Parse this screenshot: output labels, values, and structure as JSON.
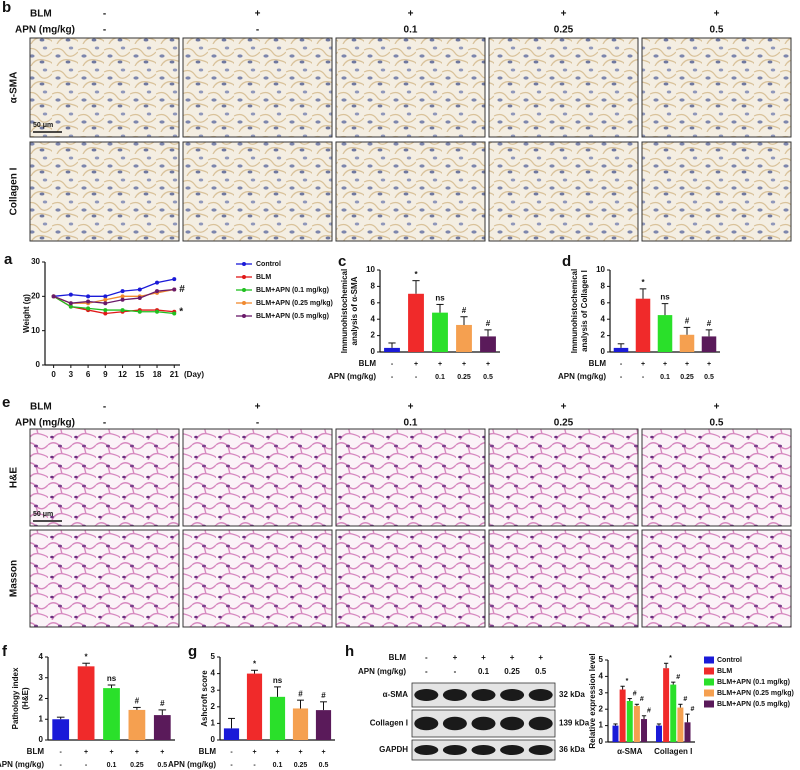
{
  "panels": [
    {
      "panel": "b",
      "header_rows": [
        {
          "label": "BLM",
          "labels": [
            "-",
            "+",
            "+",
            "+",
            "+"
          ]
        },
        {
          "label": "APN (mg/kg)",
          "labels": [
            "-",
            "-",
            "0.1",
            "0.25",
            "0.5"
          ]
        }
      ],
      "rows": [
        "α-SMA",
        "Collagen I"
      ],
      "scale_bar": "50 μm"
    },
    {
      "panel": "e",
      "header_rows": [
        {
          "label": "BLM",
          "labels": [
            "-",
            "+",
            "+",
            "+",
            "+"
          ]
        },
        {
          "label": "APN (mg/kg)",
          "labels": [
            "-",
            "-",
            "0.1",
            "0.25",
            "0.5"
          ]
        }
      ],
      "rows": [
        "H&E",
        "Masson"
      ],
      "scale_bar": "50 μm"
    }
  ],
  "blot": {
    "panel": "h",
    "header_rows": [
      {
        "label": "BLM",
        "labels": [
          "-",
          "+",
          "+",
          "+",
          "+"
        ]
      },
      {
        "label": "APN (mg/kg)",
        "labels": [
          "-",
          "-",
          "0.1",
          "0.25",
          "0.5"
        ]
      }
    ],
    "bands": [
      {
        "name": "α-SMA",
        "size": "32 kDa"
      },
      {
        "name": "Collagen I",
        "size": "139 kDa"
      },
      {
        "name": "GAPDH",
        "size": "36 kDa"
      }
    ]
  },
  "chart_data": [
    {
      "type": "line",
      "panel": "a",
      "y_label": [
        "Weight (g)"
      ],
      "x_label": "(Day)",
      "x": [
        0,
        3,
        6,
        9,
        12,
        15,
        18,
        21
      ],
      "xlim": [
        -1.5,
        22
      ],
      "xticks": [
        0,
        3,
        6,
        9,
        12,
        15,
        18,
        21
      ],
      "ylim": [
        0,
        30
      ],
      "yticks": [
        0,
        10,
        20,
        30
      ],
      "series": [
        {
          "name": "Control",
          "color": "#1a1ad8",
          "values": [
            20,
            20.5,
            20,
            20,
            21.5,
            22,
            24,
            25
          ]
        },
        {
          "name": "BLM",
          "color": "#e01818",
          "values": [
            20,
            17,
            16,
            15,
            15.5,
            16,
            16,
            15.5
          ],
          "end_label": "*"
        },
        {
          "name": "BLM+APN (0.1 mg/kg)",
          "color": "#20c020",
          "values": [
            20,
            17,
            16.5,
            16,
            16,
            15.5,
            15.5,
            15
          ]
        },
        {
          "name": "BLM+APN (0.25 mg/kg)",
          "color": "#f08a30",
          "values": [
            20,
            18,
            18,
            19,
            20,
            20,
            21,
            22
          ],
          "end_label": "#"
        },
        {
          "name": "BLM+APN (0.5 mg/kg)",
          "color": "#6a1a6a",
          "values": [
            20,
            18,
            18.5,
            18,
            19,
            19.5,
            21.5,
            22
          ]
        }
      ]
    },
    {
      "type": "bar",
      "panel": "c",
      "y_label": [
        "Immunohistochemical",
        "analysis of α-SMA"
      ],
      "ylim": [
        0,
        10
      ],
      "yticks": [
        0,
        2,
        4,
        6,
        8,
        10
      ],
      "values": [
        0.5,
        7.1,
        4.8,
        3.3,
        1.9
      ],
      "errors": [
        0.6,
        1.6,
        1.0,
        1.0,
        0.8
      ],
      "bar_labels": [
        null,
        "*",
        "ns",
        "#",
        "#"
      ],
      "colors": [
        "#1a1ad8",
        "#f02a2a",
        "#2ae02a",
        "#f5a050",
        "#5a1a5a"
      ],
      "group_rows": [
        {
          "label": "BLM",
          "labels": [
            "-",
            "+",
            "+",
            "+",
            "+"
          ]
        },
        {
          "label": "APN (mg/kg)",
          "labels": [
            "-",
            "-",
            "0.1",
            "0.25",
            "0.5"
          ]
        }
      ]
    },
    {
      "type": "bar",
      "panel": "d",
      "y_label": [
        "Immunohistochemical",
        "analysis of Collagen I"
      ],
      "ylim": [
        0,
        10
      ],
      "yticks": [
        0,
        2,
        4,
        6,
        8,
        10
      ],
      "values": [
        0.5,
        6.5,
        4.5,
        2.1,
        1.9
      ],
      "errors": [
        0.5,
        1.2,
        1.4,
        0.9,
        0.8
      ],
      "bar_labels": [
        null,
        "*",
        "ns",
        "#",
        "#"
      ],
      "colors": [
        "#1a1ad8",
        "#f02a2a",
        "#2ae02a",
        "#f5a050",
        "#5a1a5a"
      ],
      "group_rows": [
        {
          "label": "BLM",
          "labels": [
            "-",
            "+",
            "+",
            "+",
            "+"
          ]
        },
        {
          "label": "APN (mg/kg)",
          "labels": [
            "-",
            "-",
            "0.1",
            "0.25",
            "0.5"
          ]
        }
      ]
    },
    {
      "type": "bar",
      "panel": "f",
      "y_label": [
        "Pathology index",
        "(H&E)"
      ],
      "ylim": [
        0,
        4
      ],
      "yticks": [
        0,
        1,
        2,
        3,
        4
      ],
      "values": [
        1.0,
        3.55,
        2.5,
        1.45,
        1.2
      ],
      "errors": [
        0.1,
        0.15,
        0.15,
        0.12,
        0.25
      ],
      "bar_labels": [
        null,
        "*",
        "ns",
        "#",
        "#"
      ],
      "colors": [
        "#1a1ad8",
        "#f02a2a",
        "#2ae02a",
        "#f5a050",
        "#5a1a5a"
      ],
      "group_rows": [
        {
          "label": "BLM",
          "labels": [
            "-",
            "+",
            "+",
            "+",
            "+"
          ]
        },
        {
          "label": "APN (mg/kg)",
          "labels": [
            "-",
            "-",
            "0.1",
            "0.25",
            "0.5"
          ]
        }
      ]
    },
    {
      "type": "bar",
      "panel": "g",
      "y_label": [
        "Ashcroft score"
      ],
      "ylim": [
        0,
        5
      ],
      "yticks": [
        0,
        1,
        2,
        3,
        4,
        5
      ],
      "values": [
        0.7,
        4.0,
        2.6,
        1.9,
        1.8
      ],
      "errors": [
        0.6,
        0.2,
        0.6,
        0.5,
        0.5
      ],
      "bar_labels": [
        null,
        "*",
        "ns",
        "#",
        "#"
      ],
      "colors": [
        "#1a1ad8",
        "#f02a2a",
        "#2ae02a",
        "#f5a050",
        "#5a1a5a"
      ],
      "group_rows": [
        {
          "label": "BLM",
          "labels": [
            "-",
            "+",
            "+",
            "+",
            "+"
          ]
        },
        {
          "label": "APN (mg/kg)",
          "labels": [
            "-",
            "-",
            "0.1",
            "0.25",
            "0.5"
          ]
        }
      ]
    },
    {
      "type": "grouped_bar",
      "y_label": [
        "Relative expression level"
      ],
      "categories": [
        "α-SMA",
        "Collagen I"
      ],
      "ylim": [
        0,
        5
      ],
      "yticks": [
        0,
        1,
        2,
        3,
        4,
        5
      ],
      "series": [
        {
          "name": "Control",
          "color": "#1a1ad8",
          "values": [
            1.0,
            1.0
          ],
          "errors": [
            0.1,
            0.1
          ],
          "bar_labels": [
            null,
            null
          ]
        },
        {
          "name": "BLM",
          "color": "#f02a2a",
          "values": [
            3.2,
            4.5
          ],
          "errors": [
            0.2,
            0.3
          ],
          "bar_labels": [
            "*",
            "*"
          ]
        },
        {
          "name": "BLM+APN (0.1 mg/kg)",
          "color": "#2ae02a",
          "values": [
            2.5,
            3.5
          ],
          "errors": [
            0.15,
            0.15
          ],
          "bar_labels": [
            "#",
            "#"
          ]
        },
        {
          "name": "BLM+APN (0.25 mg/kg)",
          "color": "#f5a050",
          "values": [
            2.2,
            2.1
          ],
          "errors": [
            0.1,
            0.2
          ],
          "bar_labels": [
            "#",
            "#"
          ]
        },
        {
          "name": "BLM+APN (0.5 mg/kg)",
          "color": "#5a1a5a",
          "values": [
            1.4,
            1.2
          ],
          "errors": [
            0.2,
            0.5
          ],
          "bar_labels": [
            "#",
            "#"
          ]
        }
      ]
    }
  ]
}
